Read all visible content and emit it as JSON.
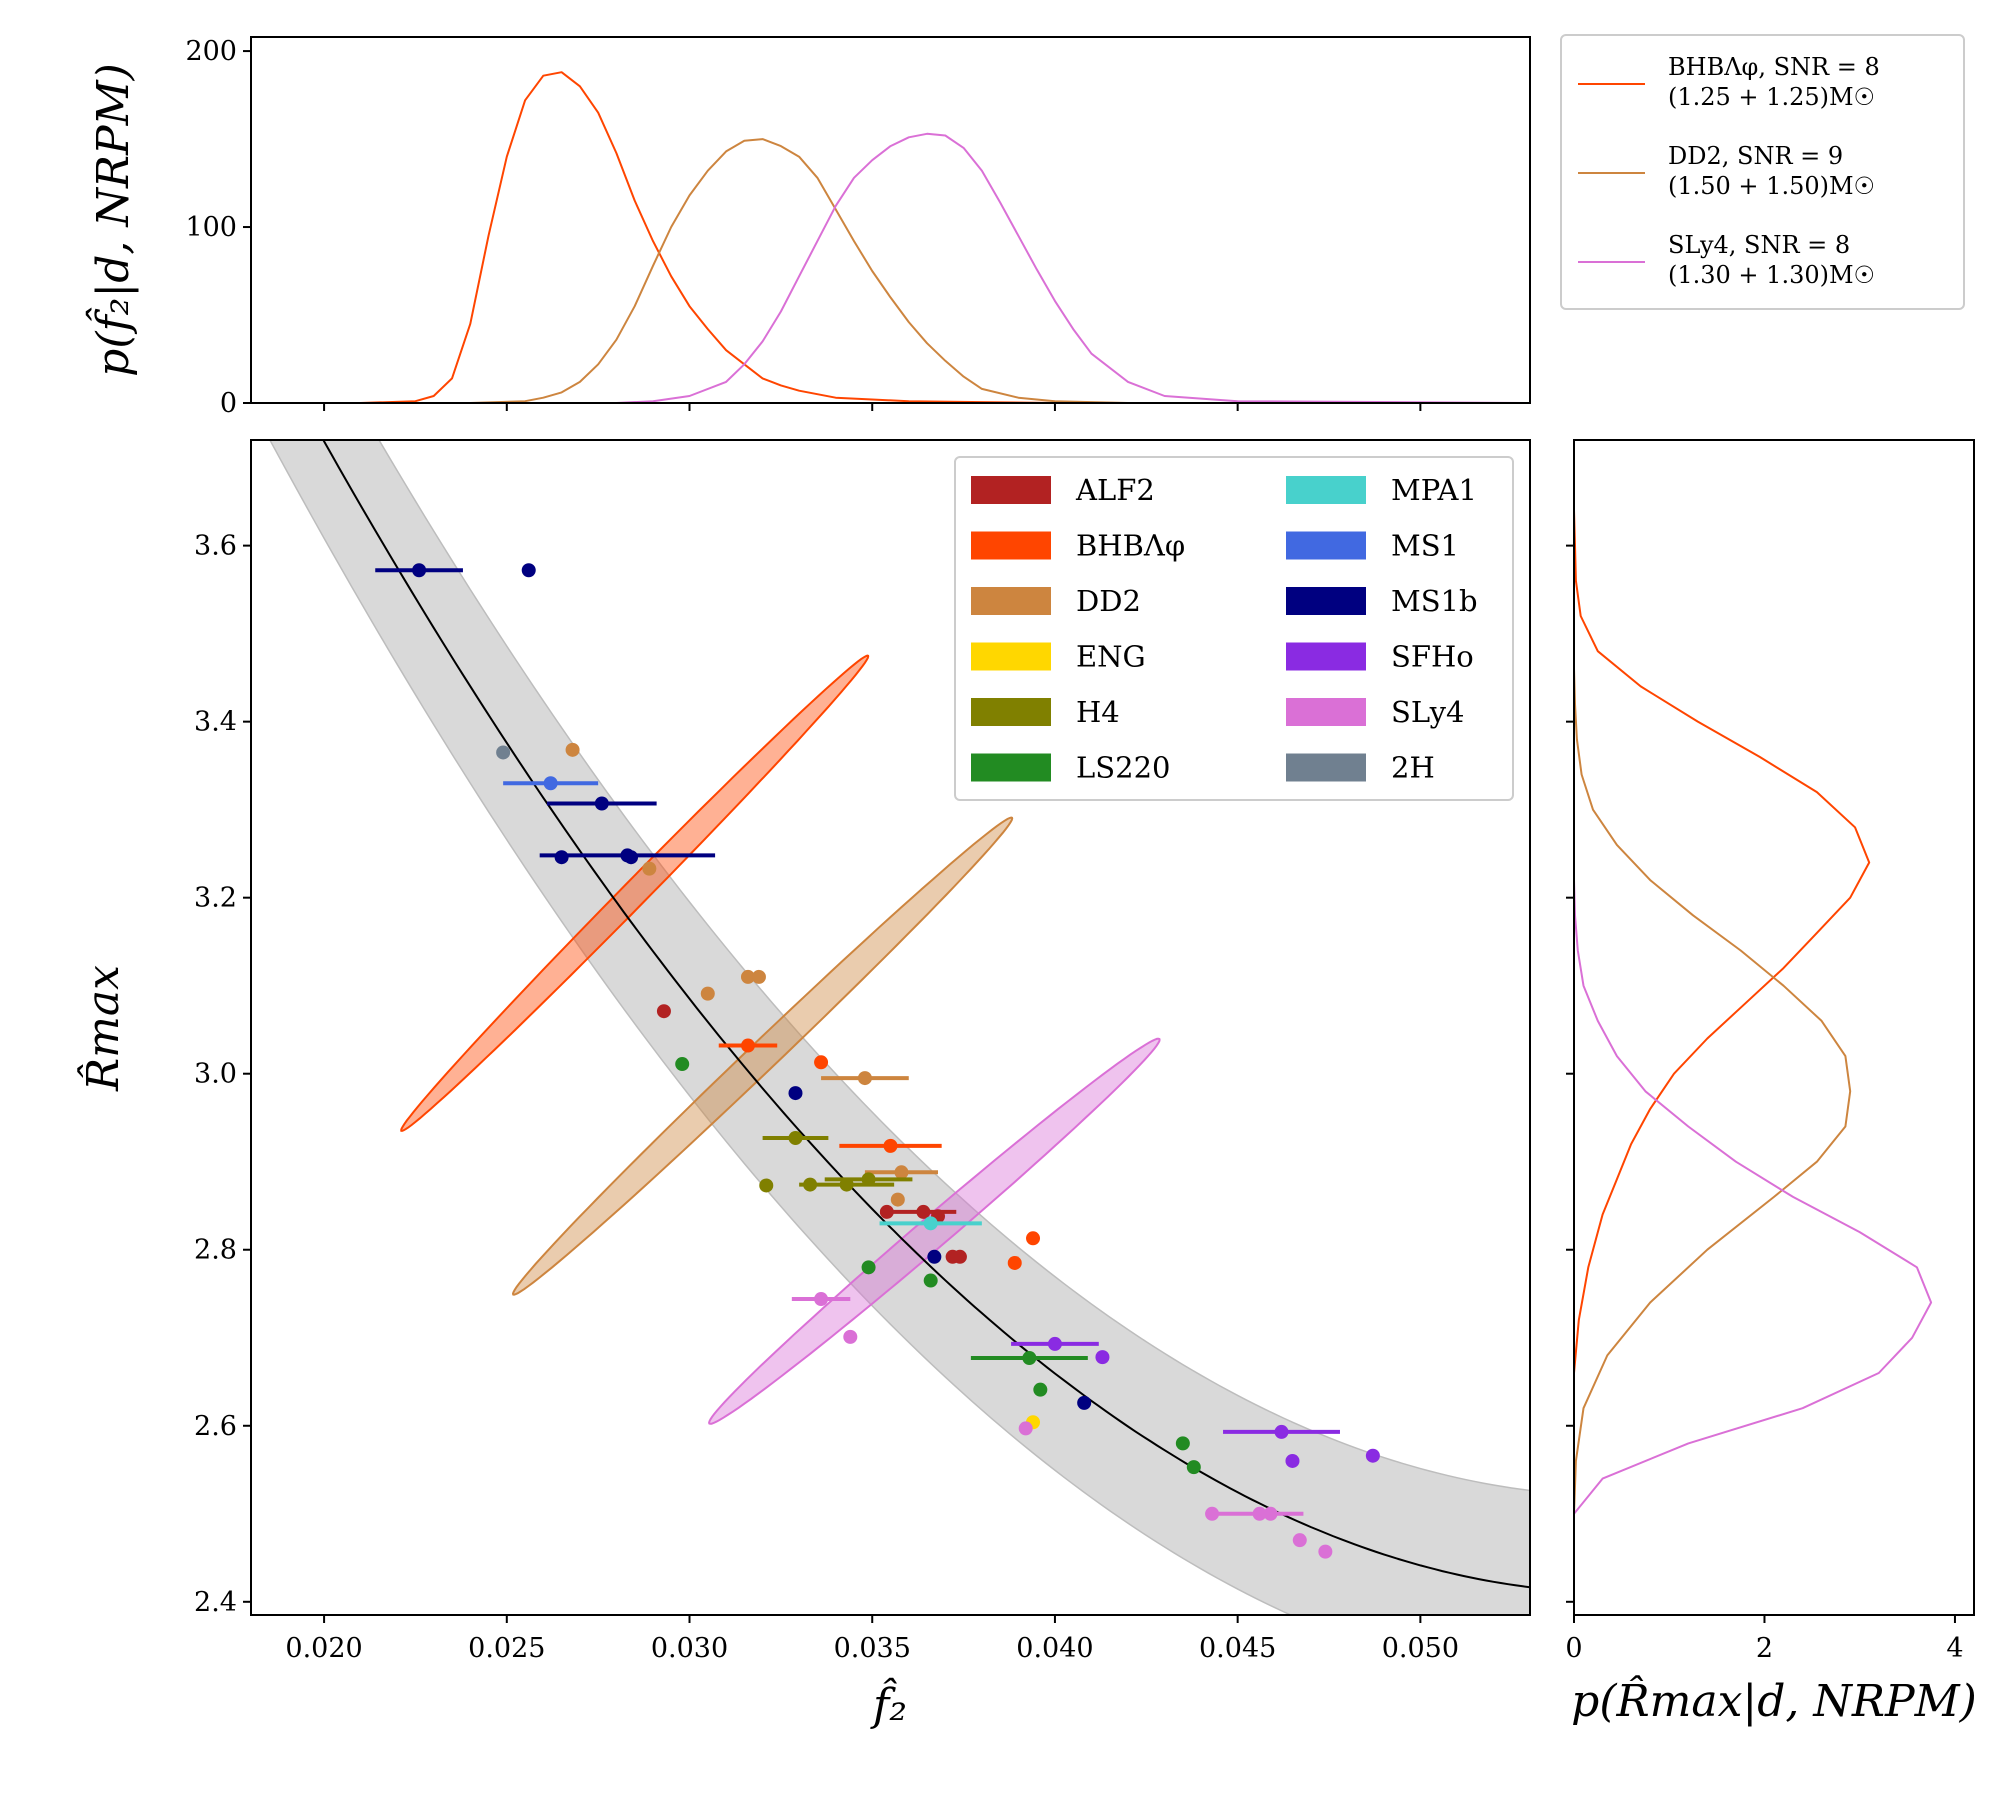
{
  "chart_data": [
    {
      "panel": "top-marginal",
      "type": "line",
      "ylabel": "p(f̂₂|d, NRPM)",
      "xlim": [
        0.018,
        0.053
      ],
      "ylim": [
        0,
        208
      ],
      "yticks": [
        0,
        100,
        200
      ],
      "series": [
        {
          "name": "BHBΛφ, SNR = 8",
          "masses": "(1.25 + 1.25)M☉",
          "color": "#ff4500",
          "x": [
            0.018,
            0.021,
            0.0225,
            0.023,
            0.0235,
            0.024,
            0.0245,
            0.025,
            0.0255,
            0.026,
            0.0265,
            0.027,
            0.0275,
            0.028,
            0.0285,
            0.029,
            0.0295,
            0.03,
            0.0305,
            0.031,
            0.0315,
            0.032,
            0.0325,
            0.033,
            0.0335,
            0.034,
            0.035,
            0.036,
            0.038,
            0.04,
            0.053
          ],
          "y": [
            0,
            0,
            1,
            4,
            14,
            45,
            95,
            140,
            172,
            186,
            188,
            180,
            165,
            142,
            115,
            92,
            72,
            55,
            42,
            30,
            22,
            14,
            10,
            7,
            5,
            3,
            2,
            1,
            0.5,
            0,
            0
          ]
        },
        {
          "name": "DD2, SNR = 9",
          "masses": "(1.50 + 1.50)M☉",
          "color": "#cd853f",
          "x": [
            0.018,
            0.024,
            0.0255,
            0.026,
            0.0265,
            0.027,
            0.0275,
            0.028,
            0.0285,
            0.029,
            0.0295,
            0.03,
            0.0305,
            0.031,
            0.0315,
            0.032,
            0.0325,
            0.033,
            0.0335,
            0.034,
            0.0345,
            0.035,
            0.0355,
            0.036,
            0.0365,
            0.037,
            0.0375,
            0.038,
            0.039,
            0.04,
            0.042,
            0.053
          ],
          "y": [
            0,
            0,
            1,
            3,
            6,
            12,
            22,
            36,
            55,
            78,
            100,
            118,
            132,
            143,
            149,
            150,
            146,
            140,
            128,
            110,
            92,
            75,
            60,
            46,
            34,
            24,
            15,
            8,
            3,
            1,
            0,
            0
          ]
        },
        {
          "name": "SLy4, SNR = 8",
          "masses": "(1.30 + 1.30)M☉",
          "color": "#da70d6",
          "x": [
            0.018,
            0.028,
            0.029,
            0.03,
            0.031,
            0.0315,
            0.032,
            0.0325,
            0.033,
            0.0335,
            0.034,
            0.0345,
            0.035,
            0.0355,
            0.036,
            0.0365,
            0.037,
            0.0375,
            0.038,
            0.0385,
            0.039,
            0.0395,
            0.04,
            0.0405,
            0.041,
            0.042,
            0.043,
            0.045,
            0.053
          ],
          "y": [
            0,
            0,
            1,
            4,
            12,
            22,
            35,
            52,
            72,
            92,
            112,
            128,
            138,
            146,
            151,
            153,
            152,
            145,
            132,
            114,
            95,
            76,
            58,
            42,
            28,
            12,
            4,
            1,
            0
          ]
        }
      ]
    },
    {
      "panel": "main",
      "type": "scatter",
      "xlabel": "f̂₂",
      "ylabel": "R̂max",
      "xlim": [
        0.018,
        0.053
      ],
      "ylim": [
        2.385,
        3.72
      ],
      "xticks": [
        "0.020",
        "0.025",
        "0.030",
        "0.035",
        "0.040",
        "0.045",
        "0.050"
      ],
      "yticks": [
        "2.4",
        "2.6",
        "2.8",
        "3.0",
        "3.2",
        "3.4",
        "3.6"
      ],
      "fit_curve": {
        "f0": 0.018,
        "y0": 3.87,
        "vertex_f": 0.0555,
        "vertex_y": 2.41
      },
      "band_halfwidth": 0.11,
      "ellipses": [
        {
          "eos": "BHBΛφ",
          "color": "#ff4500",
          "center": [
            0.0285,
            3.205
          ],
          "semi_major": 0.333,
          "semi_minor": 0.0125,
          "angle_deg": -45.5
        },
        {
          "eos": "DD2",
          "color": "#cd853f",
          "center": [
            0.032,
            3.02
          ],
          "semi_major": 0.345,
          "semi_minor": 0.0145,
          "angle_deg": -43.7
        },
        {
          "eos": "SLy4",
          "color": "#da70d6",
          "center": [
            0.0367,
            2.821
          ],
          "semi_major": 0.296,
          "semi_minor": 0.0155,
          "angle_deg": -40.5
        }
      ],
      "legend": [
        {
          "name": "ALF2",
          "color": "#b22222"
        },
        {
          "name": "BHBΛφ",
          "color": "#ff4500"
        },
        {
          "name": "DD2",
          "color": "#cd853f"
        },
        {
          "name": "ENG",
          "color": "#ffd700"
        },
        {
          "name": "H4",
          "color": "#808000"
        },
        {
          "name": "LS220",
          "color": "#228b22"
        },
        {
          "name": "MPA1",
          "color": "#48d1cc"
        },
        {
          "name": "MS1",
          "color": "#4169e1"
        },
        {
          "name": "MS1b",
          "color": "#000080"
        },
        {
          "name": "SFHo",
          "color": "#8a2be2"
        },
        {
          "name": "SLy4",
          "color": "#da70d6"
        },
        {
          "name": "2H",
          "color": "#708090"
        }
      ],
      "points": [
        {
          "eos": "MS1b",
          "x": 0.0226,
          "y": 3.572,
          "err": 0.0012
        },
        {
          "eos": "MS1b",
          "x": 0.0256,
          "y": 3.572,
          "err": 0
        },
        {
          "eos": "2H",
          "x": 0.0249,
          "y": 3.365,
          "err": 0
        },
        {
          "eos": "MS1",
          "x": 0.0262,
          "y": 3.33,
          "err": 0.0013
        },
        {
          "eos": "MS1b",
          "x": 0.0276,
          "y": 3.307,
          "err": 0.0015
        },
        {
          "eos": "MS1b",
          "x": 0.0265,
          "y": 3.246,
          "err": 0
        },
        {
          "eos": "MS1b",
          "x": 0.0283,
          "y": 3.248,
          "err": 0.0024
        },
        {
          "eos": "MS1b",
          "x": 0.0284,
          "y": 3.246,
          "err": 0
        },
        {
          "eos": "DD2",
          "x": 0.0268,
          "y": 3.368,
          "err": 0
        },
        {
          "eos": "DD2",
          "x": 0.0289,
          "y": 3.233,
          "err": 0
        },
        {
          "eos": "DD2",
          "x": 0.0316,
          "y": 3.11,
          "err": 0
        },
        {
          "eos": "DD2",
          "x": 0.0319,
          "y": 3.11,
          "err": 0
        },
        {
          "eos": "DD2",
          "x": 0.0305,
          "y": 3.091,
          "err": 0
        },
        {
          "eos": "DD2",
          "x": 0.0348,
          "y": 2.995,
          "err": 0.0012
        },
        {
          "eos": "DD2",
          "x": 0.0358,
          "y": 2.888,
          "err": 0.001
        },
        {
          "eos": "DD2",
          "x": 0.0357,
          "y": 2.857,
          "err": 0
        },
        {
          "eos": "BHBΛφ",
          "x": 0.0316,
          "y": 3.032,
          "err": 0.0008
        },
        {
          "eos": "BHBΛφ",
          "x": 0.0336,
          "y": 3.013,
          "err": 0
        },
        {
          "eos": "BHBΛφ",
          "x": 0.0355,
          "y": 2.918,
          "err": 0.0014
        },
        {
          "eos": "BHBΛφ",
          "x": 0.0394,
          "y": 2.813,
          "err": 0
        },
        {
          "eos": "BHBΛφ",
          "x": 0.0389,
          "y": 2.785,
          "err": 0
        },
        {
          "eos": "ALF2",
          "x": 0.0293,
          "y": 3.071,
          "err": 0
        },
        {
          "eos": "ALF2",
          "x": 0.0354,
          "y": 2.843,
          "err": 0
        },
        {
          "eos": "ALF2",
          "x": 0.0364,
          "y": 2.843,
          "err": 0.0009
        },
        {
          "eos": "ALF2",
          "x": 0.0368,
          "y": 2.838,
          "err": 0
        },
        {
          "eos": "ALF2",
          "x": 0.0372,
          "y": 2.792,
          "err": 0
        },
        {
          "eos": "ALF2",
          "x": 0.0374,
          "y": 2.792,
          "err": 0
        },
        {
          "eos": "LS220",
          "x": 0.0298,
          "y": 3.011,
          "err": 0
        },
        {
          "eos": "LS220",
          "x": 0.0349,
          "y": 2.78,
          "err": 0
        },
        {
          "eos": "LS220",
          "x": 0.0366,
          "y": 2.765,
          "err": 0
        },
        {
          "eos": "LS220",
          "x": 0.0393,
          "y": 2.677,
          "err": 0.0016
        },
        {
          "eos": "LS220",
          "x": 0.0396,
          "y": 2.641,
          "err": 0
        },
        {
          "eos": "LS220",
          "x": 0.0435,
          "y": 2.58,
          "err": 0
        },
        {
          "eos": "LS220",
          "x": 0.0438,
          "y": 2.553,
          "err": 0
        },
        {
          "eos": "H4",
          "x": 0.0329,
          "y": 2.927,
          "err": 0.0009
        },
        {
          "eos": "H4",
          "x": 0.0321,
          "y": 2.873,
          "err": 0
        },
        {
          "eos": "H4",
          "x": 0.0333,
          "y": 2.874,
          "err": 0
        },
        {
          "eos": "H4",
          "x": 0.0343,
          "y": 2.874,
          "err": 0.0013
        },
        {
          "eos": "H4",
          "x": 0.0349,
          "y": 2.88,
          "err": 0.0012
        },
        {
          "eos": "MPA1",
          "x": 0.0366,
          "y": 2.83,
          "err": 0.0014
        },
        {
          "eos": "MS1b",
          "x": 0.0329,
          "y": 2.978,
          "err": 0
        },
        {
          "eos": "MS1b",
          "x": 0.0367,
          "y": 2.792,
          "err": 0
        },
        {
          "eos": "MS1b",
          "x": 0.0408,
          "y": 2.626,
          "err": 0
        },
        {
          "eos": "SFHo",
          "x": 0.04,
          "y": 2.693,
          "err": 0.0012
        },
        {
          "eos": "SFHo",
          "x": 0.0413,
          "y": 2.678,
          "err": 0
        },
        {
          "eos": "SFHo",
          "x": 0.0462,
          "y": 2.593,
          "err": 0.0016
        },
        {
          "eos": "SFHo",
          "x": 0.0465,
          "y": 2.56,
          "err": 0
        },
        {
          "eos": "SFHo",
          "x": 0.0487,
          "y": 2.566,
          "err": 0
        },
        {
          "eos": "ENG",
          "x": 0.0394,
          "y": 2.604,
          "err": 0
        },
        {
          "eos": "SLy4",
          "x": 0.0336,
          "y": 2.744,
          "err": 0.0008
        },
        {
          "eos": "SLy4",
          "x": 0.0344,
          "y": 2.701,
          "err": 0
        },
        {
          "eos": "SLy4",
          "x": 0.0392,
          "y": 2.597,
          "err": 0
        },
        {
          "eos": "SLy4",
          "x": 0.0443,
          "y": 2.5,
          "err": 0
        },
        {
          "eos": "SLy4",
          "x": 0.0456,
          "y": 2.5,
          "err": 0.0012
        },
        {
          "eos": "SLy4",
          "x": 0.0459,
          "y": 2.5,
          "err": 0
        },
        {
          "eos": "SLy4",
          "x": 0.0467,
          "y": 2.47,
          "err": 0
        },
        {
          "eos": "SLy4",
          "x": 0.0474,
          "y": 2.457,
          "err": 0
        }
      ]
    },
    {
      "panel": "right-marginal",
      "type": "line",
      "orientation": "horizontal",
      "xlabel": "p(R̂max|d, NRPM)",
      "xlim": [
        0,
        4.2
      ],
      "ylim": [
        2.385,
        3.72
      ],
      "xticks": [
        0,
        2,
        4
      ],
      "series": [
        {
          "name": "BHBΛφ",
          "color": "#ff4500",
          "y": [
            2.66,
            2.72,
            2.78,
            2.84,
            2.88,
            2.92,
            2.96,
            3.0,
            3.04,
            3.08,
            3.12,
            3.16,
            3.2,
            3.24,
            3.28,
            3.32,
            3.36,
            3.4,
            3.44,
            3.48,
            3.52,
            3.56,
            3.6,
            3.64
          ],
          "p": [
            0,
            0.05,
            0.15,
            0.3,
            0.45,
            0.6,
            0.8,
            1.05,
            1.4,
            1.8,
            2.2,
            2.55,
            2.9,
            3.1,
            2.95,
            2.55,
            1.95,
            1.3,
            0.7,
            0.25,
            0.07,
            0.02,
            0.01,
            0
          ]
        },
        {
          "name": "DD2",
          "color": "#cd853f",
          "y": [
            2.5,
            2.56,
            2.62,
            2.68,
            2.74,
            2.8,
            2.86,
            2.9,
            2.94,
            2.98,
            3.02,
            3.06,
            3.1,
            3.14,
            3.18,
            3.22,
            3.26,
            3.3,
            3.34,
            3.38,
            3.42,
            3.46
          ],
          "p": [
            0,
            0.02,
            0.1,
            0.35,
            0.8,
            1.4,
            2.1,
            2.55,
            2.85,
            2.9,
            2.85,
            2.6,
            2.2,
            1.75,
            1.25,
            0.8,
            0.45,
            0.2,
            0.08,
            0.03,
            0.01,
            0
          ]
        },
        {
          "name": "SLy4",
          "color": "#da70d6",
          "y": [
            2.5,
            2.54,
            2.58,
            2.62,
            2.66,
            2.7,
            2.74,
            2.78,
            2.82,
            2.86,
            2.9,
            2.94,
            2.98,
            3.02,
            3.06,
            3.1,
            3.14,
            3.18,
            3.22
          ],
          "p": [
            0,
            0.3,
            1.2,
            2.4,
            3.2,
            3.55,
            3.75,
            3.6,
            3.0,
            2.3,
            1.7,
            1.2,
            0.75,
            0.45,
            0.25,
            0.1,
            0.04,
            0.01,
            0
          ]
        }
      ]
    }
  ]
}
